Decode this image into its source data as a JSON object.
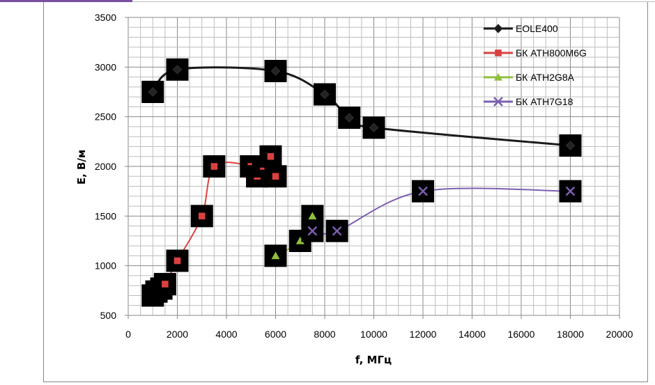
{
  "chart_data": {
    "type": "scatter",
    "title": "",
    "xlabel": "f, МГц",
    "ylabel": "E, В/м",
    "xlim": [
      0,
      20000
    ],
    "ylim": [
      500,
      3500
    ],
    "xticks": [
      "0",
      "2000",
      "4000",
      "6000",
      "8000",
      "10000",
      "12000",
      "14000",
      "16000",
      "18000",
      "20000"
    ],
    "yticks": [
      "500",
      "1000",
      "1500",
      "2000",
      "2500",
      "3000",
      "3500"
    ],
    "grid": true,
    "legend_position": "top-right",
    "series": [
      {
        "name": "EOLE400",
        "color": "#1a1a1a",
        "marker": "diamond",
        "smooth": true,
        "x": [
          1000,
          2000,
          6000,
          8000,
          9000,
          10000,
          18000
        ],
        "y": [
          2750,
          2975,
          2960,
          2725,
          2490,
          2390,
          2210
        ]
      },
      {
        "name": "БК ATH800M6G",
        "color": "#d9413f",
        "marker": "square",
        "smooth": true,
        "x": [
          1000,
          1150,
          1350,
          1500,
          2000,
          3000,
          3500,
          5000,
          5250,
          5500,
          5800,
          6000
        ],
        "y": [
          700,
          740,
          770,
          815,
          1050,
          1500,
          2000,
          2000,
          1900,
          2000,
          2100,
          1900
        ]
      },
      {
        "name": "БК ATH2G8A",
        "color": "#8fbf3f",
        "marker": "triangle",
        "smooth": true,
        "x": [
          6000,
          7000,
          7500
        ],
        "y": [
          1100,
          1250,
          1500
        ]
      },
      {
        "name": "БК ATH7G18",
        "color": "#7b5fb0",
        "marker": "x",
        "smooth": true,
        "x": [
          7500,
          8500,
          12000,
          18000
        ],
        "y": [
          1350,
          1350,
          1750,
          1750
        ]
      }
    ]
  }
}
